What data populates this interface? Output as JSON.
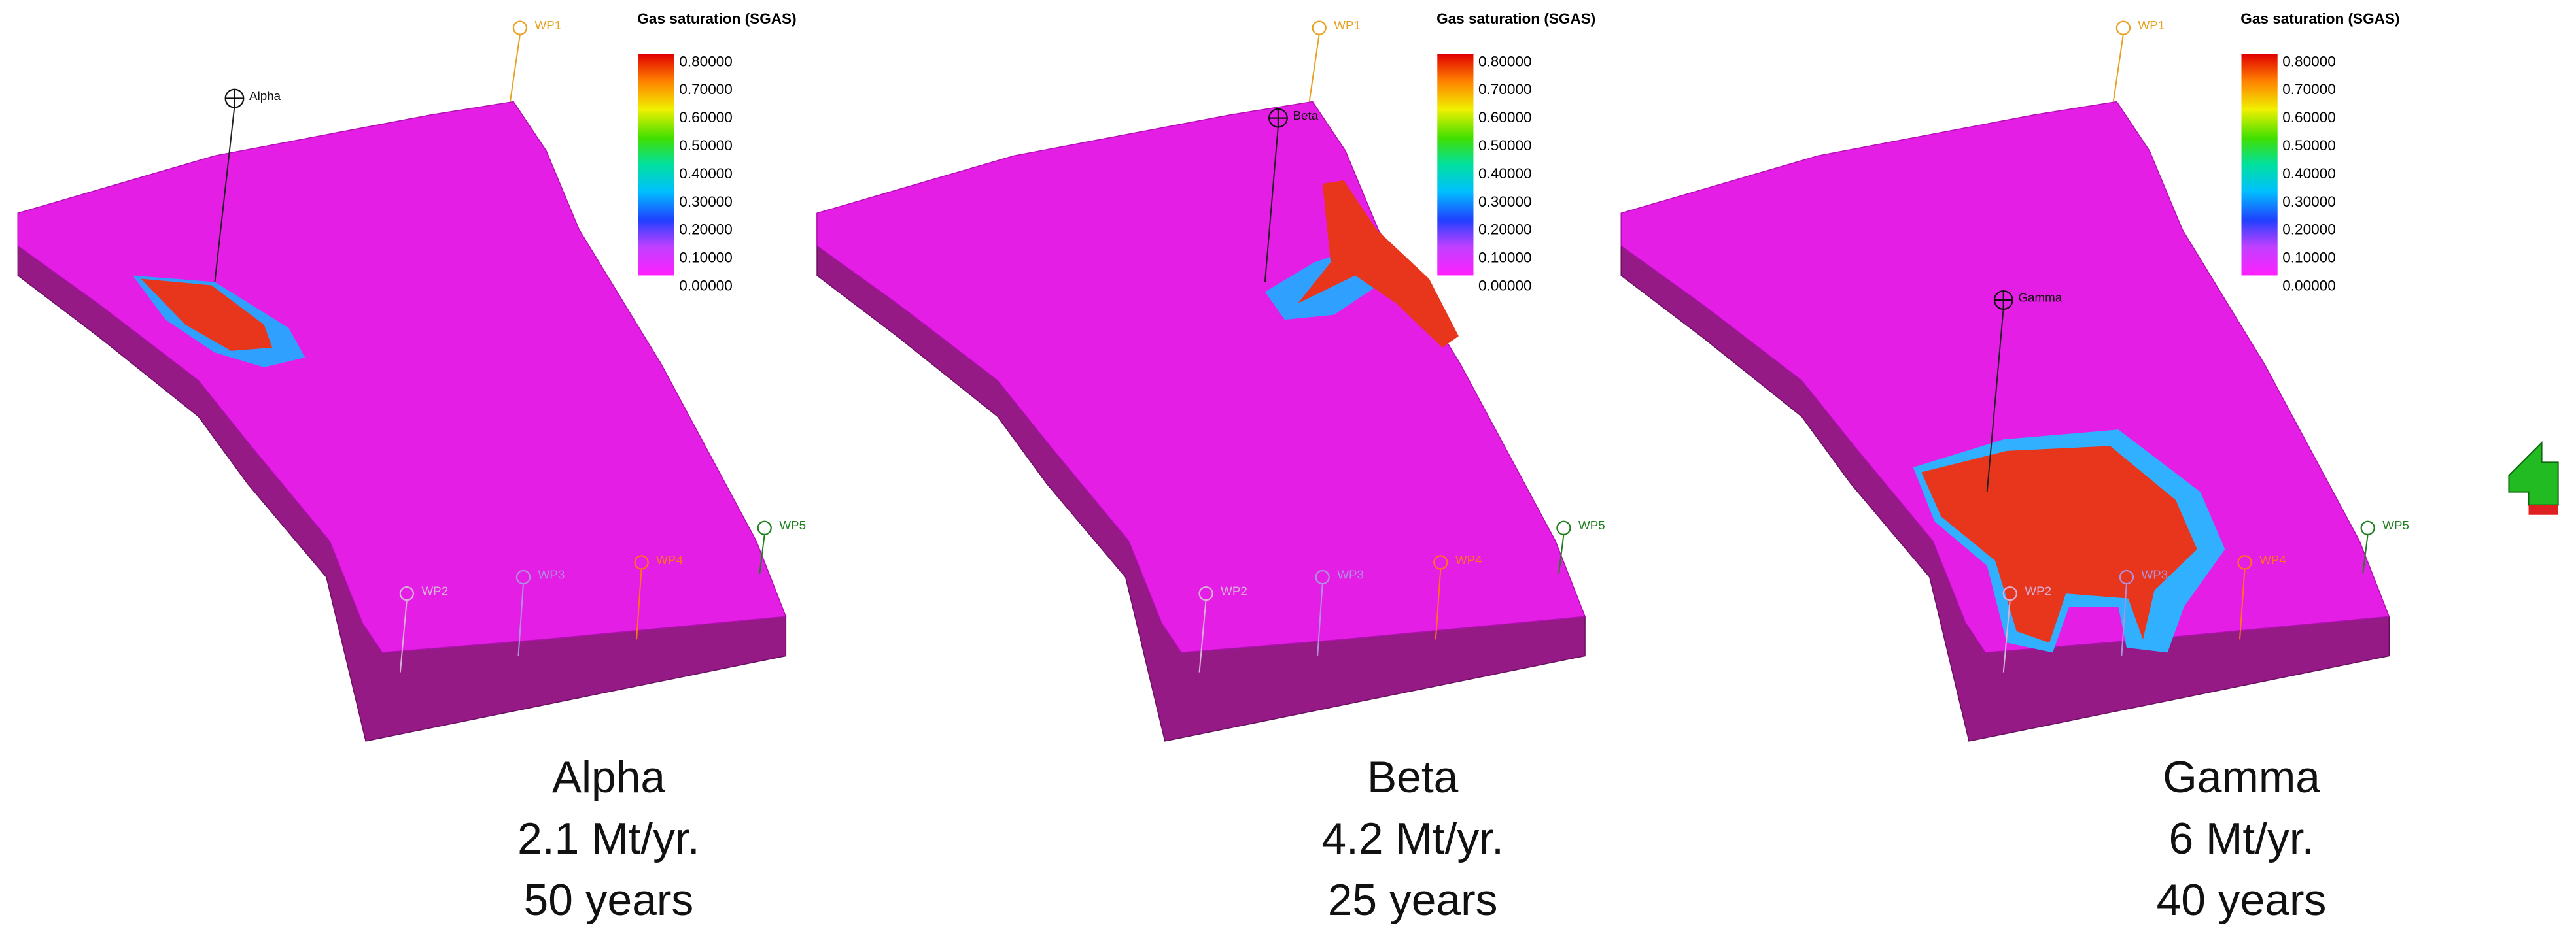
{
  "colorbar": {
    "title": "Gas saturation (SGAS)",
    "ticks": [
      "0.80000",
      "0.70000",
      "0.60000",
      "0.50000",
      "0.40000",
      "0.30000",
      "0.20000",
      "0.10000",
      "0.00000"
    ]
  },
  "panels": [
    {
      "injector": "Alpha",
      "wells": [
        "WP1",
        "WP2",
        "WP3",
        "WP4",
        "WP5"
      ],
      "caption": [
        "Alpha",
        "2.1 Mt/yr.",
        "50 years"
      ]
    },
    {
      "injector": "Beta",
      "wells": [
        "WP1",
        "WP2",
        "WP3",
        "WP4",
        "WP5"
      ],
      "caption": [
        "Beta",
        "4.2 Mt/yr.",
        "25 years"
      ]
    },
    {
      "injector": "Gamma",
      "wells": [
        "WP1",
        "WP2",
        "WP3",
        "WP4",
        "WP5"
      ],
      "caption": [
        "Gamma",
        "6 Mt/yr.",
        "40 years"
      ]
    }
  ]
}
